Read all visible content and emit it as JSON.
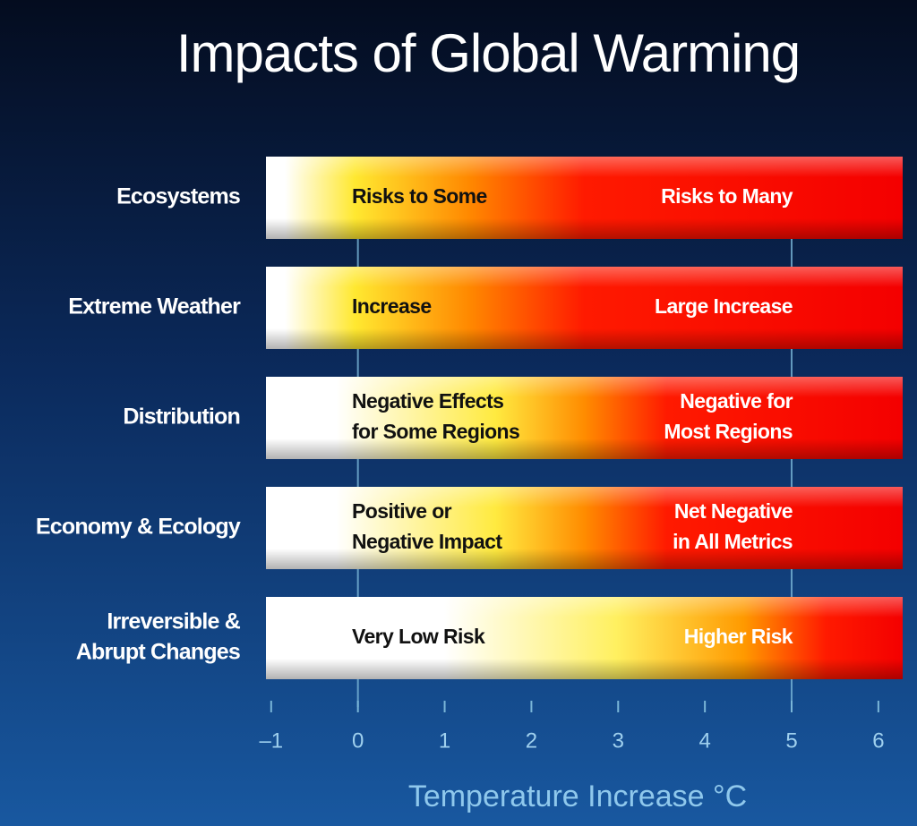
{
  "chart_data": {
    "type": "impact-bars",
    "title": "Impacts of Global Warming",
    "x_label": "Temperature Increase °C",
    "categories": [
      [
        "Ecosystems"
      ],
      [
        "Extreme Weather"
      ],
      [
        "Distribution"
      ],
      [
        "Economy & Ecology"
      ],
      [
        "Irreversible &",
        "Abrupt  Changes"
      ]
    ],
    "low_labels": [
      [
        "Risks to Some"
      ],
      [
        "Increase"
      ],
      [
        "Negative Effects",
        "for Some Regions"
      ],
      [
        "Positive or",
        "Negative Impact"
      ],
      [
        "Very Low Risk"
      ]
    ],
    "high_labels": [
      [
        "Risks to Many"
      ],
      [
        "Large Increase"
      ],
      [
        "Negative for",
        "Most Regions"
      ],
      [
        "Net Negative",
        "in All Metrics"
      ],
      [
        "Higher Risk"
      ]
    ],
    "xlim": [
      -1.06,
      6.28
    ],
    "xticks": [
      {
        "value": -1,
        "label": "–1"
      },
      0,
      1,
      2,
      3,
      4,
      5,
      6
    ],
    "reference_lines": [
      0,
      5
    ]
  }
}
